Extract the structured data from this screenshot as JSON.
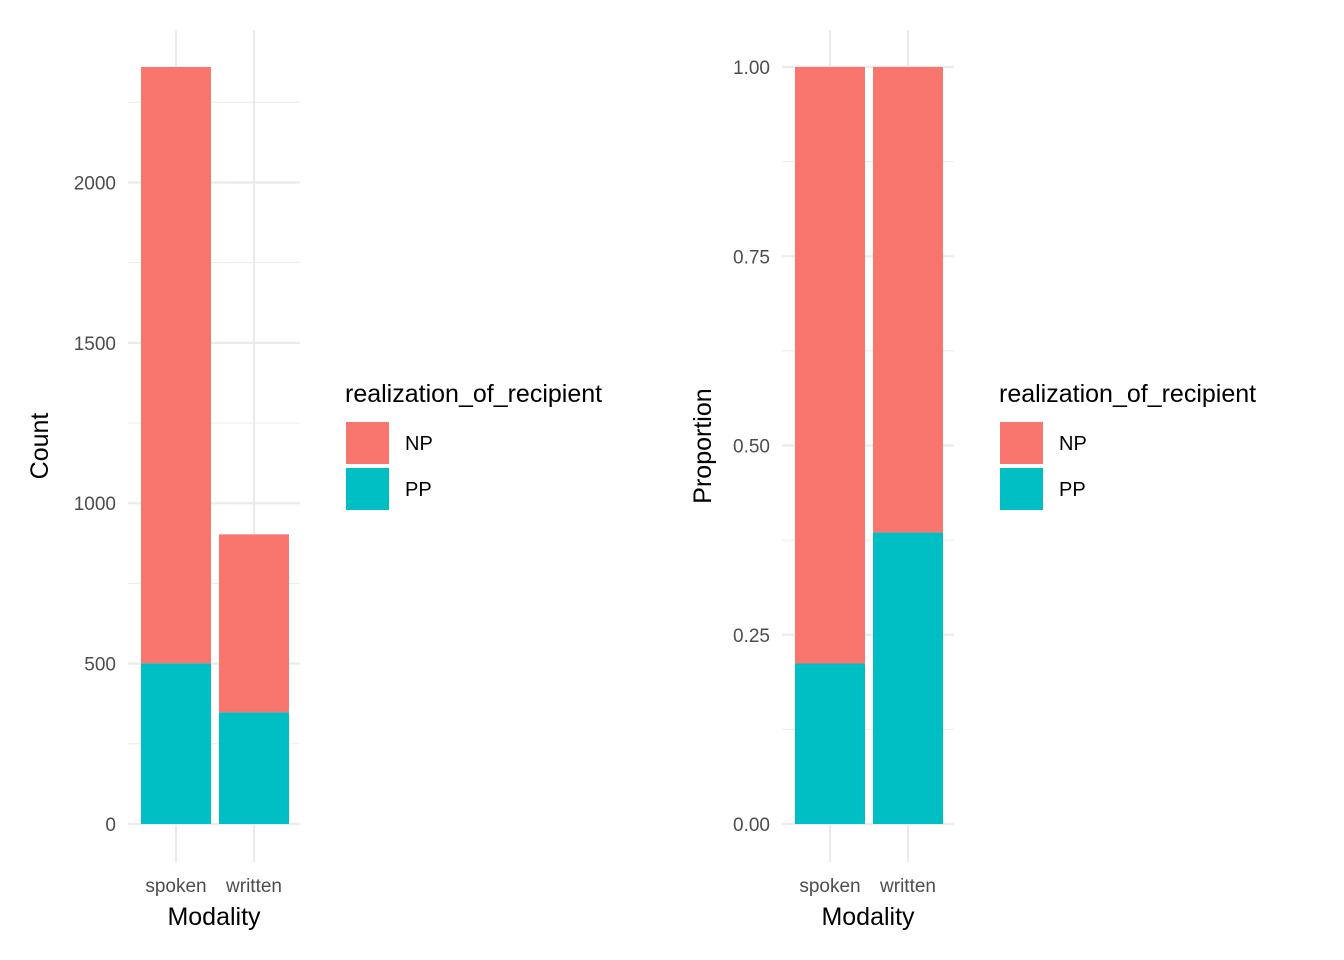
{
  "chart_data": [
    {
      "type": "bar",
      "stacked": true,
      "categories": [
        "spoken",
        "written"
      ],
      "series": [
        {
          "name": "NP",
          "color": "#F8766D",
          "values": [
            1859,
            555
          ]
        },
        {
          "name": "PP",
          "color": "#00BFC4",
          "values": [
            501,
            348
          ]
        }
      ],
      "xlabel": "Modality",
      "ylabel": "Count",
      "ylim": [
        0,
        2360
      ],
      "yticks": [
        0,
        500,
        1000,
        1500,
        2000
      ],
      "ytick_labels": [
        "0",
        "500",
        "1000",
        "1500",
        "2000"
      ],
      "grid": true,
      "legend_title": "realization_of_recipient",
      "legend_position": "right"
    },
    {
      "type": "bar",
      "stacked": true,
      "categories": [
        "spoken",
        "written"
      ],
      "series": [
        {
          "name": "NP",
          "color": "#F8766D",
          "values": [
            0.788,
            0.615
          ]
        },
        {
          "name": "PP",
          "color": "#00BFC4",
          "values": [
            0.212,
            0.385
          ]
        }
      ],
      "xlabel": "Modality",
      "ylabel": "Proportion",
      "ylim": [
        0,
        1
      ],
      "yticks": [
        0,
        0.25,
        0.5,
        0.75,
        1
      ],
      "ytick_labels": [
        "0.00",
        "0.25",
        "0.50",
        "0.75",
        "1.00"
      ],
      "grid": true,
      "legend_title": "realization_of_recipient",
      "legend_position": "right"
    }
  ]
}
